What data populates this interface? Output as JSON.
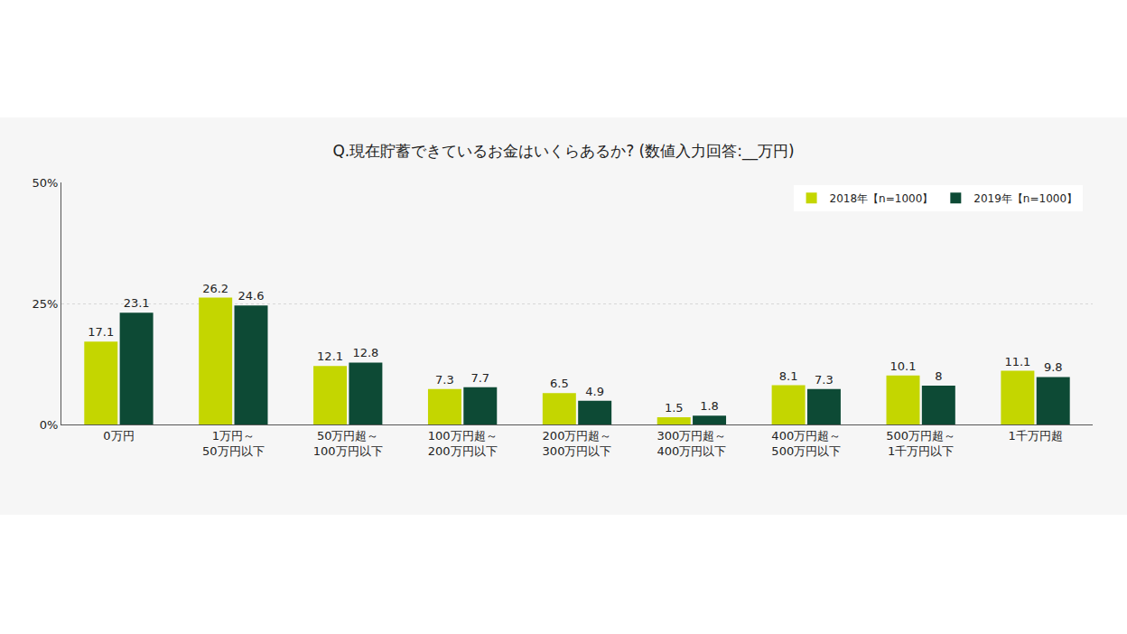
{
  "chart_data": {
    "type": "bar",
    "title": "Q.現在貯蓄できているお金はいくらあるか? (数値入力回答:__万円)",
    "categories": [
      "0万円",
      "1万円～50万円以下",
      "50万円超～100万円以下",
      "100万円超～200万円以下",
      "200万円超～300万円以下",
      "300万円超～400万円以下",
      "400万円超～500万円以下",
      "500万円超～1千万円以下",
      "1千万円超"
    ],
    "series": [
      {
        "name": "2018年【n=1000】",
        "color": "#c4d600",
        "values": [
          17.1,
          26.2,
          12.1,
          7.3,
          6.5,
          1.5,
          8.1,
          10.1,
          11.1
        ]
      },
      {
        "name": "2019年【n=1000】",
        "color": "#0d4a35",
        "values": [
          23.1,
          24.6,
          12.8,
          7.7,
          4.9,
          1.8,
          7.3,
          8.0,
          9.8
        ]
      }
    ],
    "ylim": [
      0,
      50
    ],
    "yticks": [
      {
        "value": 0,
        "label": "0%"
      },
      {
        "value": 25,
        "label": "25%"
      },
      {
        "value": 50,
        "label": "50%"
      }
    ],
    "grid": true,
    "legend": "upper right",
    "data_labels": true
  }
}
